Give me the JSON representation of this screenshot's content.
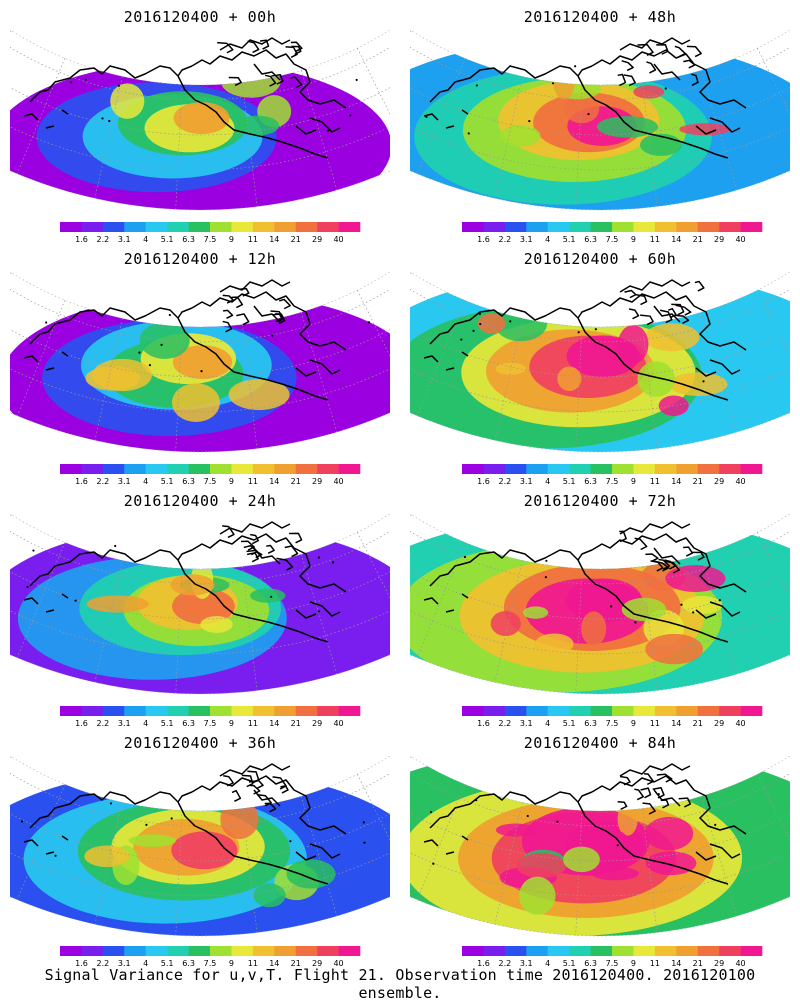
{
  "panels": [
    {
      "id": "p00",
      "title": "2016120400 + 00h"
    },
    {
      "id": "p48",
      "title": "2016120400 + 48h"
    },
    {
      "id": "p12",
      "title": "2016120400 + 12h"
    },
    {
      "id": "p60",
      "title": "2016120400 + 60h"
    },
    {
      "id": "p24",
      "title": "2016120400 + 24h"
    },
    {
      "id": "p72",
      "title": "2016120400 + 72h"
    },
    {
      "id": "p36",
      "title": "2016120400 + 36h"
    },
    {
      "id": "p84",
      "title": "2016120400 + 84h"
    }
  ],
  "colorbar": {
    "labels": [
      "1.6",
      "2.2",
      "3.1",
      "4",
      "5.1",
      "6.3",
      "7.5",
      "9",
      "11",
      "14",
      "21",
      "29",
      "40"
    ],
    "colors": [
      "#9a00e0",
      "#7a1ef0",
      "#2a50f0",
      "#1ea0f0",
      "#28c8f0",
      "#20d0b0",
      "#28c060",
      "#a0e030",
      "#e8e83a",
      "#f0c030",
      "#f0a030",
      "#f07040",
      "#f04060",
      "#f01890"
    ]
  },
  "footer": "Signal Variance for u,v,T. Flight 21. Observation time 2016120400. 2016120100 ensemble."
}
